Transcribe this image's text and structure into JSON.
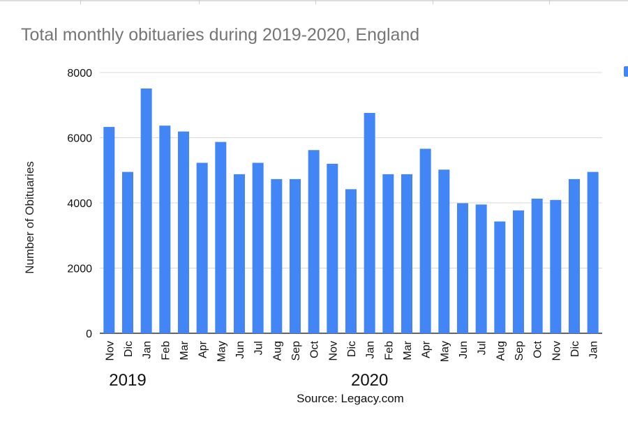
{
  "chart_data": {
    "type": "bar",
    "title": "Total monthly obituaries during 2019-2020, England",
    "ylabel": "Number of Obituaries",
    "xlabel": "",
    "ylim": [
      0,
      8000
    ],
    "yticks": [
      0,
      2000,
      4000,
      6000,
      8000
    ],
    "grid": true,
    "legend": "right",
    "bar_color": "#4285f4",
    "categories": [
      "Nov",
      "Dic",
      "Jan",
      "Feb",
      "Mar",
      "Apr",
      "May",
      "Jun",
      "Jul",
      "Aug",
      "Sep",
      "Oct",
      "Nov",
      "Dic",
      "Jan",
      "Feb",
      "Mar",
      "Apr",
      "May",
      "Jun",
      "Jul",
      "Aug",
      "Sep",
      "Oct",
      "Nov",
      "Dic",
      "Jan"
    ],
    "values": [
      6330,
      4950,
      7510,
      6370,
      6190,
      5230,
      5870,
      4880,
      5230,
      4730,
      4730,
      5620,
      5200,
      4420,
      6760,
      4880,
      4880,
      5660,
      5020,
      3990,
      3950,
      3430,
      3770,
      4130,
      4090,
      4730,
      4950
    ],
    "groups": [
      {
        "label": "2019",
        "start": 0,
        "end": 2
      },
      {
        "label": "2020",
        "start": 13,
        "end": 15
      }
    ],
    "source": "Source: Legacy.com"
  }
}
